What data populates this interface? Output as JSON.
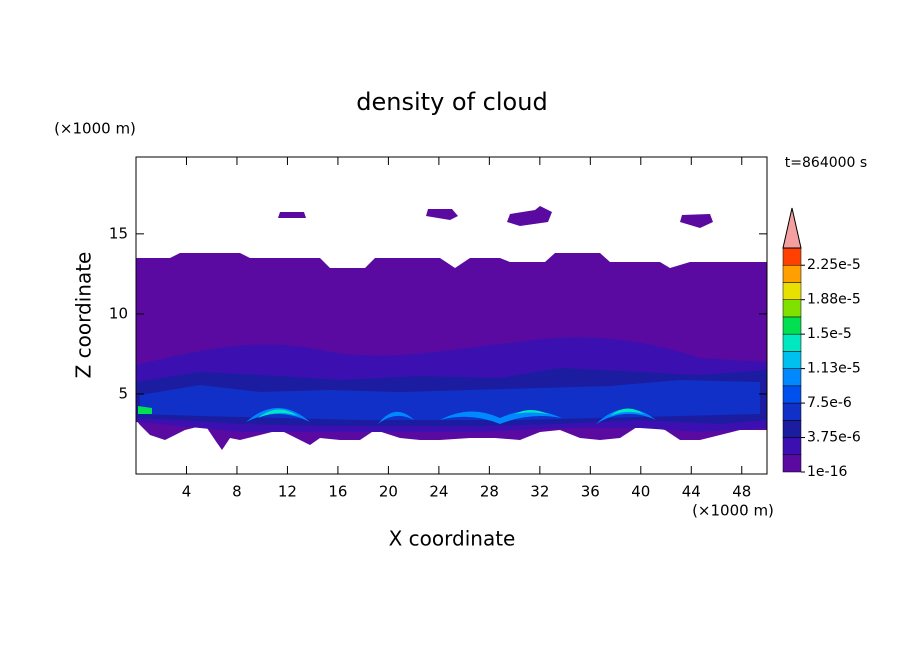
{
  "chart_data": {
    "type": "contour",
    "title": "density of cloud",
    "x_label": "X coordinate",
    "y_label": "Z coordinate",
    "x_unit": "(×1000 m)",
    "y_unit": "(×1000 m)",
    "time_label": "t=864000 s",
    "xlim": [
      0,
      50
    ],
    "ylim": [
      0,
      19.8
    ],
    "xticks": [
      4,
      8,
      12,
      16,
      20,
      24,
      28,
      32,
      36,
      40,
      44,
      48
    ],
    "yticks": [
      5,
      10,
      15
    ],
    "colorbar": {
      "levels": [
        1e-16,
        1.875e-06,
        3.75e-06,
        5.625e-06,
        7.5e-06,
        9.375e-06,
        1.125e-05,
        1.3125e-05,
        1.5e-05,
        1.6875e-05,
        1.875e-05,
        2.0625e-05,
        2.25e-05,
        2.4375e-05
      ],
      "colors": [
        "#5a0aa0",
        "#3c10b0",
        "#1c1ca0",
        "#1030c8",
        "#0050f0",
        "#0088ff",
        "#00c0f0",
        "#00e8c0",
        "#00e050",
        "#80e000",
        "#e8e000",
        "#ffa000",
        "#ff4000"
      ],
      "extend_color": "#f4a0a0",
      "ticks": [
        {
          "value": 1e-16,
          "label": "1e-16"
        },
        {
          "value": 3.75e-06,
          "label": "3.75e-6"
        },
        {
          "value": 7.5e-06,
          "label": "7.5e-6"
        },
        {
          "value": 1.125e-05,
          "label": "1.13e-5"
        },
        {
          "value": 1.5e-05,
          "label": "1.5e-5"
        },
        {
          "value": 1.875e-05,
          "label": "1.88e-5"
        },
        {
          "value": 2.25e-05,
          "label": "2.25e-5"
        }
      ]
    }
  }
}
